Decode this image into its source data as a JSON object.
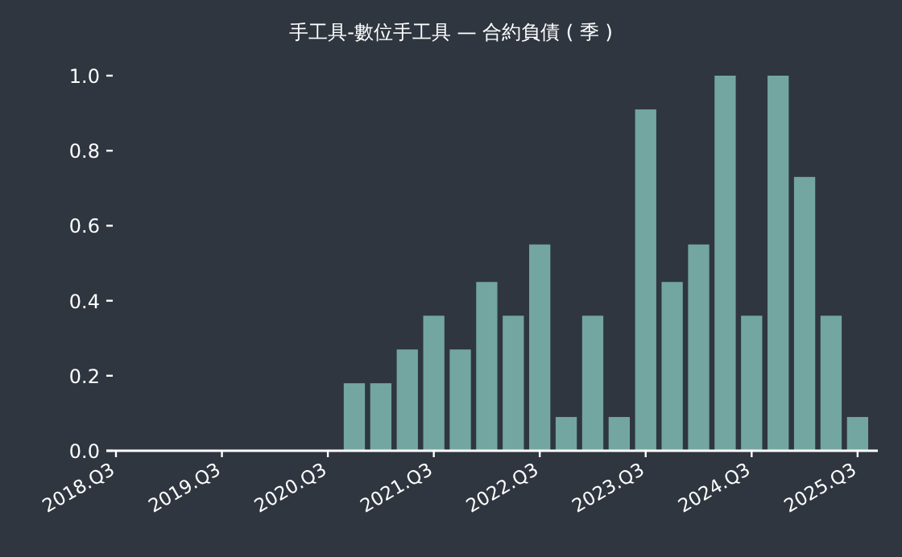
{
  "chart_data": {
    "type": "bar",
    "title": "手工具-數位手工具 — 合約負債 ( 季 )",
    "categories": [
      "2018.Q3",
      null,
      null,
      null,
      "2019.Q3",
      null,
      null,
      null,
      "2020.Q3",
      null,
      null,
      null,
      "2021.Q3",
      null,
      null,
      null,
      "2022.Q3",
      null,
      null,
      null,
      "2023.Q3",
      null,
      null,
      null,
      "2024.Q3",
      null,
      null,
      null,
      "2025.Q3"
    ],
    "values": [
      null,
      null,
      null,
      null,
      null,
      null,
      null,
      null,
      null,
      0.18,
      0.18,
      0.27,
      0.36,
      0.27,
      0.45,
      0.36,
      0.55,
      0.09,
      0.36,
      0.09,
      0.91,
      0.45,
      0.55,
      1.0,
      0.36,
      1.0,
      0.73,
      0.36,
      0.09
    ],
    "color": "#73a6a0",
    "ylim": [
      0,
      1
    ],
    "yticks": [
      {
        "value": 0,
        "label": "0.0"
      },
      {
        "value": 0.2,
        "label": "0.2"
      },
      {
        "value": 0.4,
        "label": "0.4"
      },
      {
        "value": 0.6,
        "label": "0.6"
      },
      {
        "value": 0.8,
        "label": "0.8"
      },
      {
        "value": 1,
        "label": "1.0"
      }
    ],
    "grid": false
  }
}
